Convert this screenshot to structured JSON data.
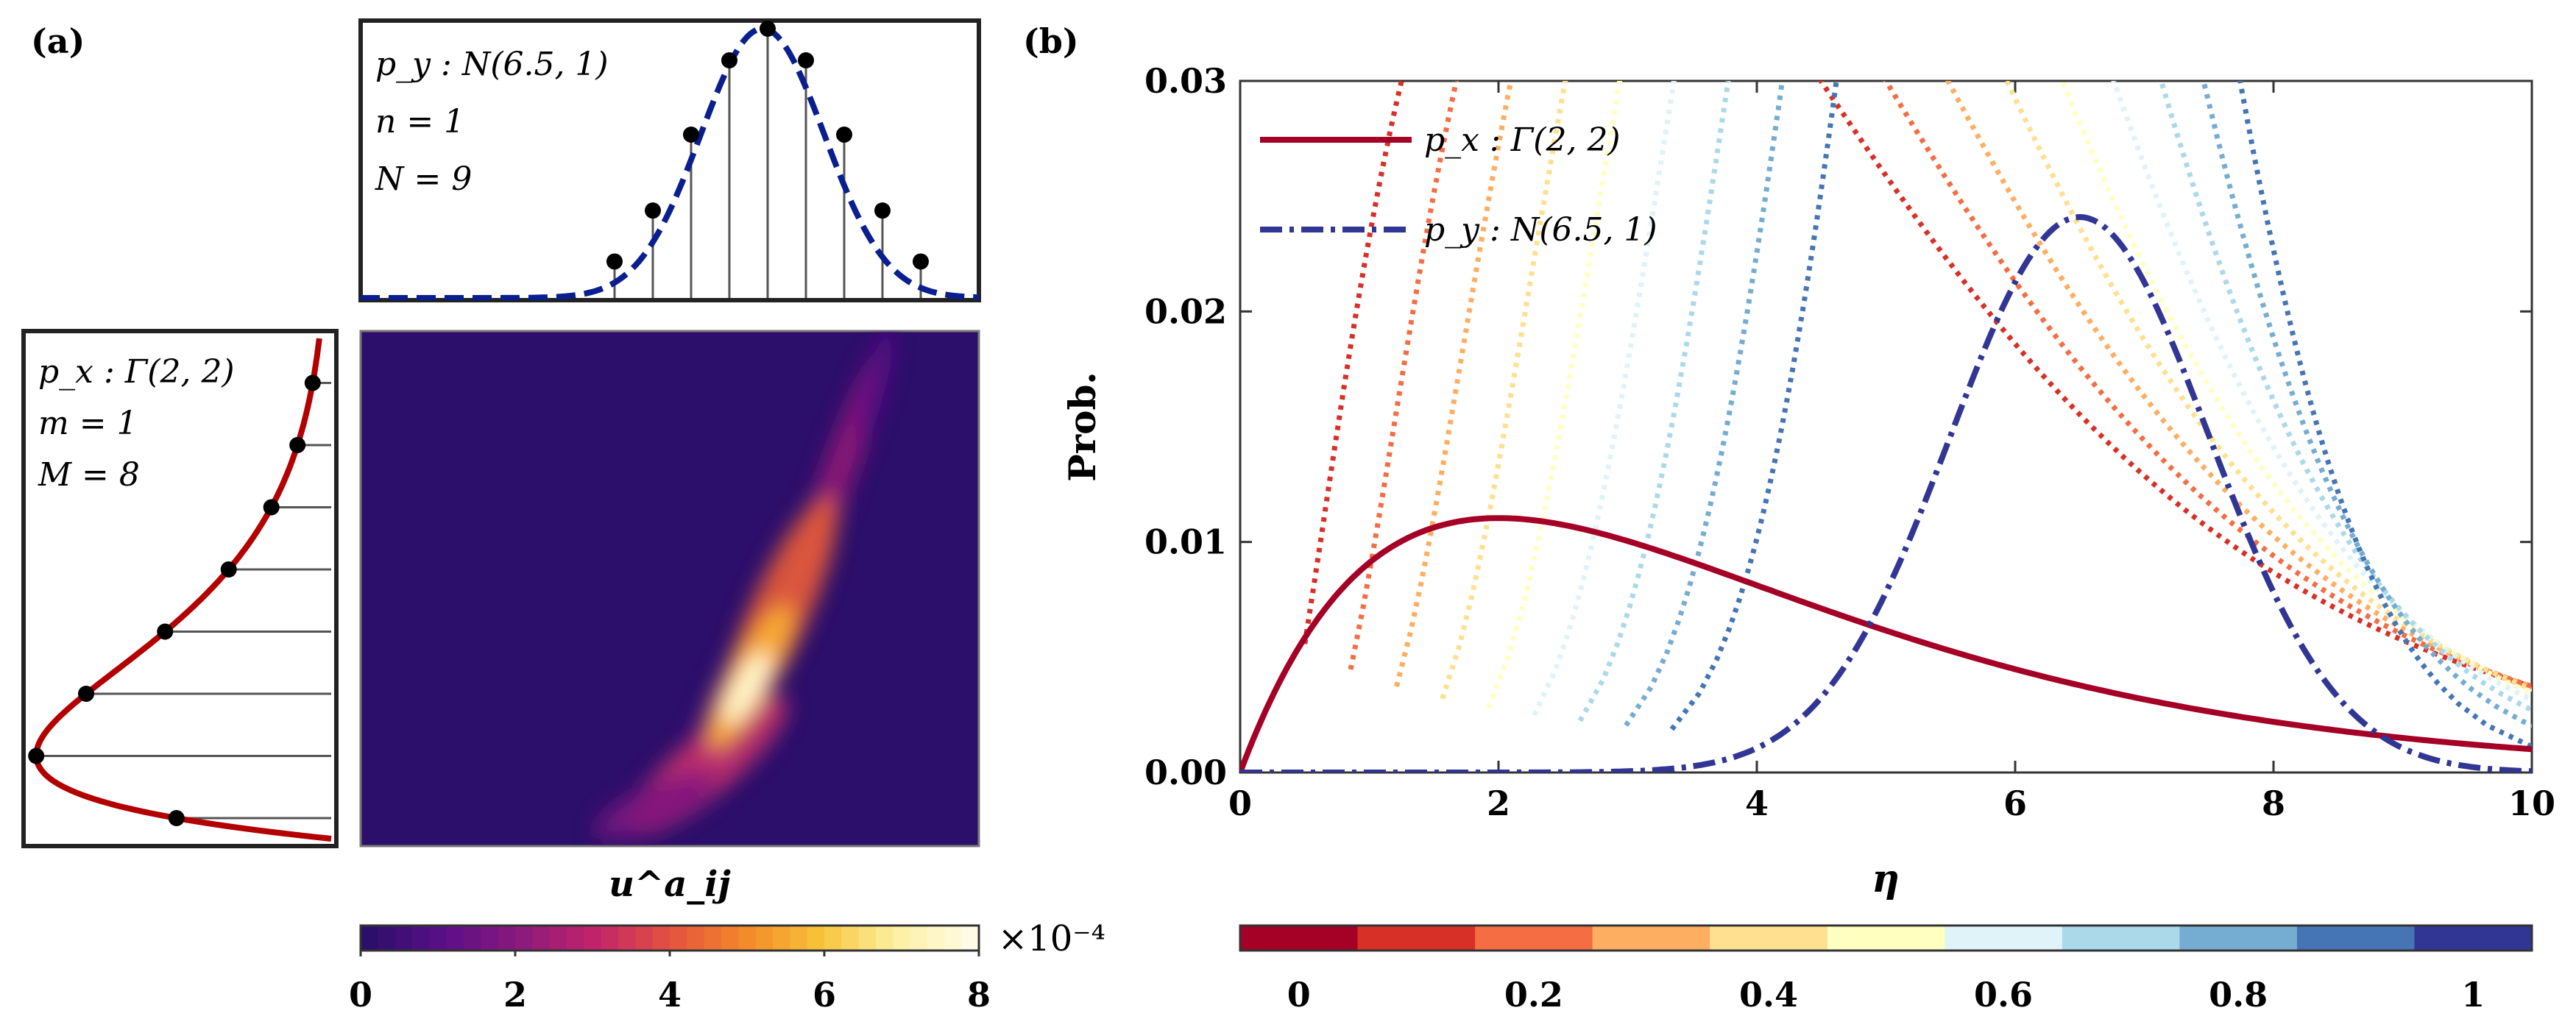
{
  "panel_labels": {
    "a": "(a)",
    "b": "(b)"
  },
  "panel_a": {
    "top_inset": {
      "lines": [
        "p_y : N(6.5, 1)",
        "n = 1",
        "N = 9"
      ]
    },
    "left_inset": {
      "lines": [
        "p_x : Γ(2, 2)",
        "m = 1",
        "M = 8"
      ]
    },
    "heatmap_xlabel": "u^a_ij",
    "colorbar": {
      "ticks": [
        "0",
        "2",
        "4",
        "6",
        "8"
      ],
      "multiplier": "×10⁻⁴",
      "max_value": 0.0008
    }
  },
  "colors": {
    "gamma_curve": "#a50026",
    "normal_curve": "#313695",
    "heatmap_background": "#2c0f6b",
    "axis": "#222222"
  },
  "chart_data": [
    {
      "type": "scatter",
      "description_source": "top inset: normal density with N=9 discrete samples",
      "series": [
        {
          "name": "p_y : N(6.5, 1)",
          "x": [
            3.32,
            3.84,
            4.36,
            4.88,
            5.4,
            5.92,
            6.44,
            6.96,
            7.48
          ],
          "y": [
            0.0026,
            0.0092,
            0.0374,
            0.0711,
            0.0887,
            0.0651,
            0.0306,
            0.0086,
            0.0014
          ]
        }
      ]
    },
    {
      "type": "scatter",
      "description_source": "left inset: gamma density with M=8 discrete samples",
      "series": [
        {
          "name": "p_x : Γ(2, 2)",
          "x": [
            0.35,
            0.7,
            1.05,
            1.4,
            1.75,
            2.1,
            2.45,
            2.8
          ],
          "y": [
            0.039,
            0.055,
            0.06,
            0.052,
            0.041,
            0.029,
            0.021,
            0.014
          ]
        }
      ]
    },
    {
      "type": "heatmap",
      "description_source": "transport plan u^a_ij",
      "colorbar_range": [
        0,
        8
      ],
      "colorbar_multiplier": "×10⁻⁴",
      "peak_location_fraction": {
        "x": 0.62,
        "y": 0.74
      }
    },
    {
      "type": "line",
      "title": "",
      "xlabel": "η",
      "ylabel": "Prob.",
      "xlim": [
        0,
        10
      ],
      "ylim": [
        0,
        0.03
      ],
      "x_ticks": [
        "0",
        "2",
        "4",
        "6",
        "8",
        "10"
      ],
      "y_ticks": [
        "0.00",
        "0.01",
        "0.02",
        "0.03"
      ],
      "legend": {
        "placement": "top-left",
        "entries": [
          "p_x : Γ(2, 2)",
          "p_y : N(6.5, 1)"
        ]
      },
      "series": [
        {
          "name": "p_x : Γ(2, 2)",
          "style": "solid",
          "x": [
            0,
            0.5,
            1,
            1.5,
            2,
            3,
            4,
            5,
            6,
            7,
            8,
            9,
            10
          ],
          "y": [
            0,
            0.0061,
            0.0092,
            0.0107,
            0.0112,
            0.0104,
            0.0084,
            0.0064,
            0.0047,
            0.0034,
            0.0024,
            0.0017,
            0.0011
          ]
        },
        {
          "name": "p_y : N(6.5, 1)",
          "style": "dashdot",
          "x": [
            2,
            3,
            4,
            4.5,
            5,
            5.5,
            6,
            6.5,
            7,
            7.5,
            8,
            8.5,
            9,
            10
          ],
          "y": [
            0.0,
            0.0001,
            0.0011,
            0.0033,
            0.0078,
            0.0146,
            0.0213,
            0.0241,
            0.0213,
            0.0146,
            0.0078,
            0.0033,
            0.0011,
            0.0001
          ]
        }
      ],
      "interpolation_colorbar": {
        "ticks": [
          "0",
          "0.2",
          "0.4",
          "0.6",
          "0.8",
          "1"
        ],
        "colors": [
          "#a50026",
          "#d73027",
          "#f46d43",
          "#fdae61",
          "#fee090",
          "#ffffbf",
          "#e0f3f8",
          "#abd9e9",
          "#74add1",
          "#4575b4",
          "#313695"
        ]
      }
    }
  ]
}
